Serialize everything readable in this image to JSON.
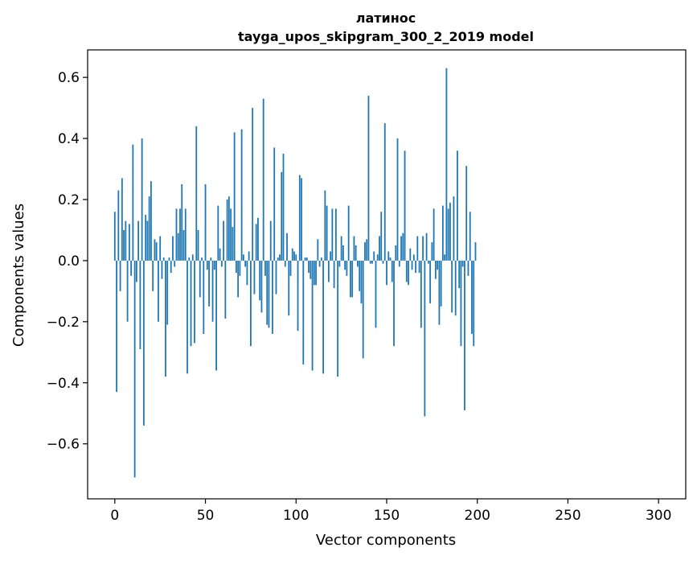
{
  "chart_data": {
    "type": "bar",
    "title_line1": "латинос",
    "title_line2": "tayga_upos_skipgram_300_2_2019 model",
    "xlabel": "Vector components",
    "ylabel": "Components values",
    "xlim": [
      -15,
      315
    ],
    "ylim": [
      -0.78,
      0.69
    ],
    "x_ticks": [
      {
        "value": 0,
        "label": "0"
      },
      {
        "value": 50,
        "label": "50"
      },
      {
        "value": 100,
        "label": "100"
      },
      {
        "value": 150,
        "label": "150"
      },
      {
        "value": 200,
        "label": "200"
      },
      {
        "value": 250,
        "label": "250"
      },
      {
        "value": 300,
        "label": "300"
      }
    ],
    "y_ticks": [
      {
        "value": -0.6,
        "label": "−0.6"
      },
      {
        "value": -0.4,
        "label": "−0.4"
      },
      {
        "value": -0.2,
        "label": "−0.2"
      },
      {
        "value": 0.0,
        "label": "0.0"
      },
      {
        "value": 0.2,
        "label": "0.2"
      },
      {
        "value": 0.4,
        "label": "0.4"
      },
      {
        "value": 0.6,
        "label": "0.6"
      }
    ],
    "bar_color": "#1f77b4",
    "values": [
      0.16,
      -0.43,
      0.23,
      -0.1,
      0.27,
      0.1,
      0.13,
      -0.2,
      0.12,
      -0.05,
      0.38,
      -0.71,
      -0.07,
      0.13,
      -0.29,
      0.4,
      -0.54,
      0.15,
      0.13,
      0.21,
      0.26,
      -0.1,
      0.07,
      0.06,
      -0.2,
      0.08,
      -0.06,
      0.01,
      -0.38,
      -0.21,
      0.01,
      -0.04,
      0.08,
      -0.02,
      0.17,
      0.09,
      0.17,
      0.25,
      0.1,
      0.17,
      -0.37,
      0.01,
      -0.28,
      0.02,
      -0.27,
      0.44,
      0.1,
      -0.12,
      0.01,
      -0.24,
      0.25,
      -0.03,
      -0.15,
      0.01,
      -0.2,
      -0.03,
      -0.36,
      0.18,
      0.04,
      -0.02,
      0.13,
      -0.19,
      0.2,
      0.21,
      0.17,
      0.11,
      0.42,
      -0.04,
      -0.12,
      -0.05,
      0.43,
      0.02,
      -0.02,
      -0.08,
      0.03,
      -0.28,
      0.5,
      -0.11,
      0.12,
      0.14,
      -0.13,
      -0.17,
      0.53,
      -0.05,
      -0.21,
      -0.22,
      0.13,
      -0.24,
      0.37,
      -0.11,
      0.01,
      0.02,
      0.29,
      0.35,
      -0.02,
      0.09,
      -0.18,
      -0.05,
      0.04,
      0.03,
      0.02,
      -0.23,
      0.28,
      0.27,
      -0.34,
      0.01,
      0.01,
      -0.04,
      -0.06,
      -0.36,
      -0.08,
      -0.08,
      0.07,
      -0.02,
      0.01,
      -0.37,
      0.23,
      0.18,
      -0.07,
      0.03,
      0.17,
      -0.09,
      0.17,
      -0.38,
      -0.02,
      0.08,
      0.05,
      -0.03,
      -0.05,
      0.18,
      -0.12,
      -0.12,
      0.08,
      0.05,
      -0.02,
      -0.1,
      -0.14,
      -0.32,
      0.06,
      0.07,
      0.54,
      -0.01,
      -0.01,
      0.03,
      -0.22,
      0.02,
      0.08,
      0.16,
      -0.01,
      0.45,
      -0.08,
      0.03,
      0.01,
      -0.07,
      -0.28,
      0.05,
      0.4,
      -0.02,
      0.08,
      0.09,
      0.36,
      -0.07,
      -0.08,
      0.04,
      -0.03,
      0.02,
      -0.04,
      0.08,
      -0.04,
      -0.22,
      0.08,
      -0.51,
      0.09,
      -0.01,
      -0.14,
      0.06,
      0.17,
      -0.06,
      -0.03,
      -0.21,
      -0.15,
      0.18,
      0.02,
      0.63,
      0.17,
      0.19,
      -0.17,
      0.21,
      -0.18,
      0.36,
      -0.09,
      -0.28,
      -0.02,
      -0.49,
      0.31,
      -0.05,
      0.16,
      -0.24,
      -0.28,
      0.06
    ]
  }
}
